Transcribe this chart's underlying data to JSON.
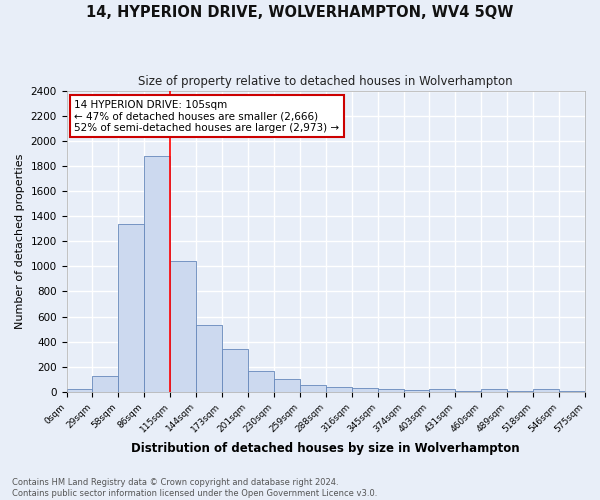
{
  "title": "14, HYPERION DRIVE, WOLVERHAMPTON, WV4 5QW",
  "subtitle": "Size of property relative to detached houses in Wolverhampton",
  "xlabel": "Distribution of detached houses by size in Wolverhampton",
  "ylabel": "Number of detached properties",
  "bar_values": [
    20,
    130,
    1340,
    1880,
    1040,
    535,
    340,
    165,
    105,
    55,
    35,
    30,
    20,
    15,
    20,
    5,
    20,
    5,
    20,
    5
  ],
  "bar_labels": [
    "0sqm",
    "29sqm",
    "58sqm",
    "86sqm",
    "115sqm",
    "144sqm",
    "173sqm",
    "201sqm",
    "230sqm",
    "259sqm",
    "288sqm",
    "316sqm",
    "345sqm",
    "374sqm",
    "403sqm",
    "431sqm",
    "460sqm",
    "489sqm",
    "518sqm",
    "546sqm",
    "575sqm"
  ],
  "bar_color": "#ccd9ef",
  "bar_edge_color": "#6688bb",
  "bg_color": "#e8eef8",
  "fig_color": "#e8eef8",
  "grid_color": "#ffffff",
  "red_line_x": 4,
  "annotation_text": "14 HYPERION DRIVE: 105sqm\n← 47% of detached houses are smaller (2,666)\n52% of semi-detached houses are larger (2,973) →",
  "annotation_box_color": "#ffffff",
  "annotation_box_edge": "#cc0000",
  "footer_text": "Contains HM Land Registry data © Crown copyright and database right 2024.\nContains public sector information licensed under the Open Government Licence v3.0.",
  "ylim": [
    0,
    2400
  ],
  "yticks": [
    0,
    200,
    400,
    600,
    800,
    1000,
    1200,
    1400,
    1600,
    1800,
    2000,
    2200,
    2400
  ]
}
